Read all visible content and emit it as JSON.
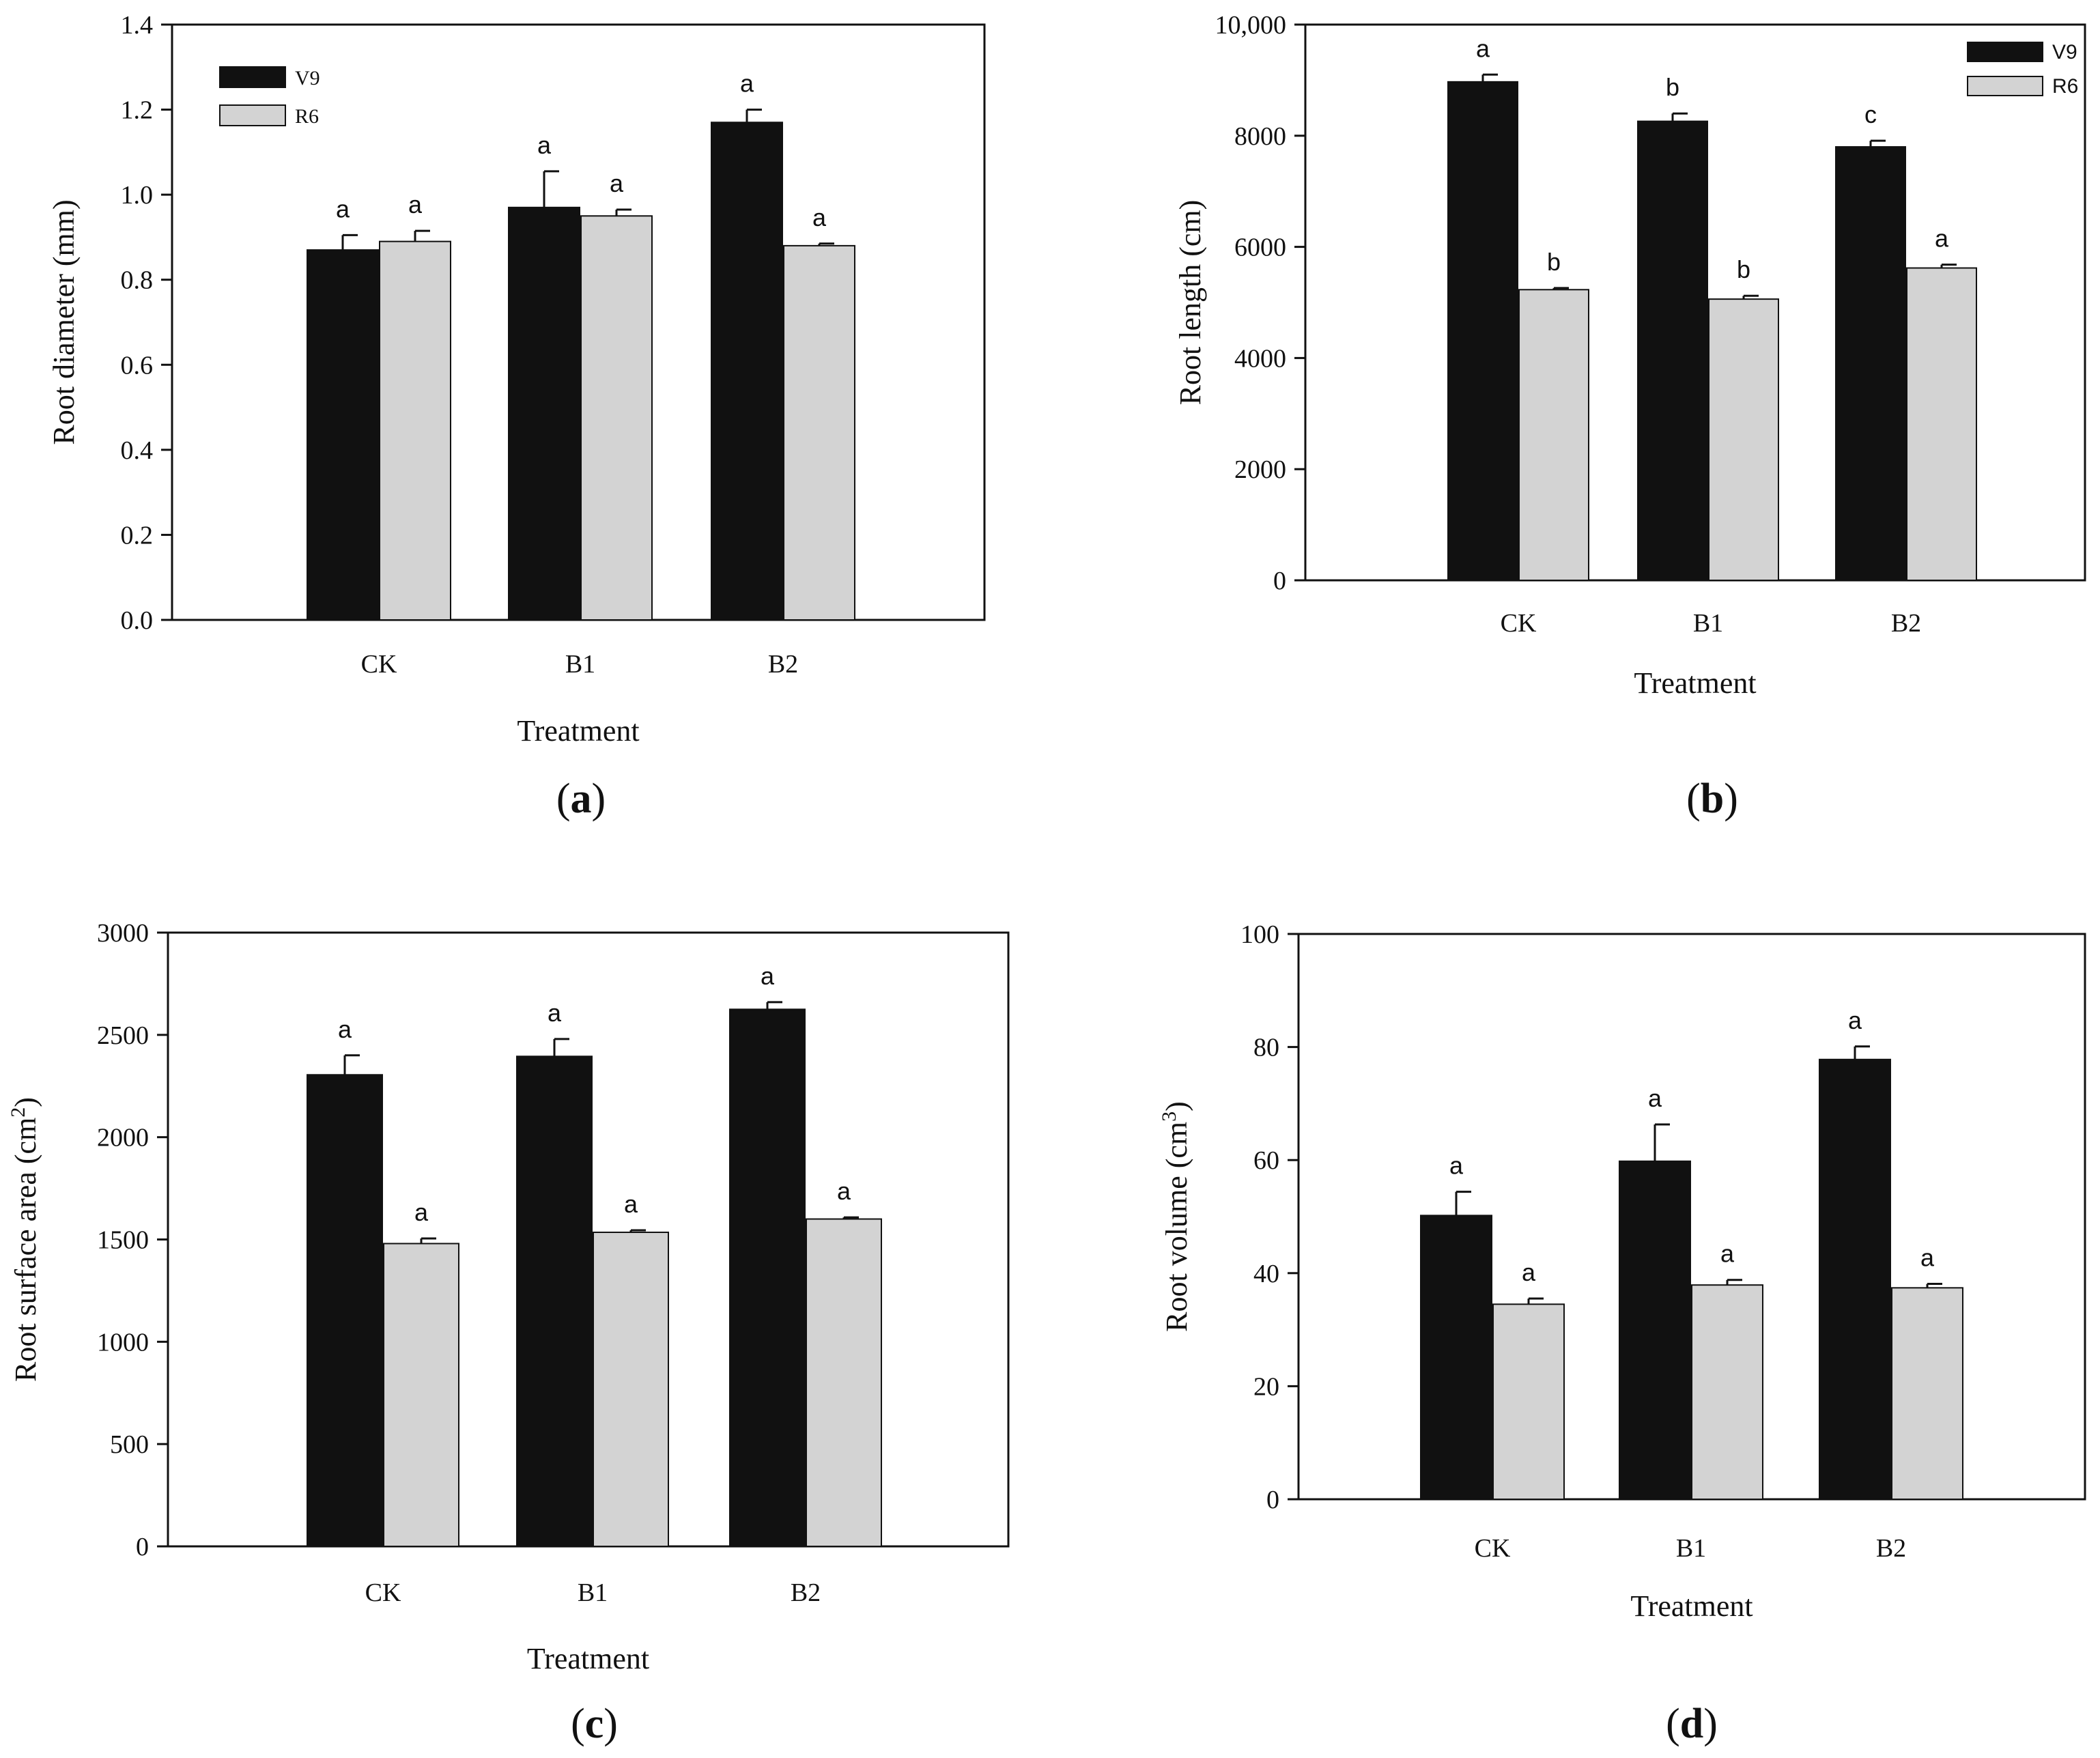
{
  "chart_data": [
    {
      "panel": "(a)",
      "panel_letter": "a",
      "type": "bar",
      "title": "",
      "xlabel": "Treatment",
      "ylabel": "Root diameter (mm)",
      "categories": [
        "CK",
        "B1",
        "B2"
      ],
      "ylim": [
        0,
        1.4
      ],
      "yticks": [
        0.0,
        0.2,
        0.4,
        0.6,
        0.8,
        1.0,
        1.2,
        1.4
      ],
      "ytick_labels": [
        "0.0",
        "0.2",
        "0.4",
        "0.6",
        "0.8",
        "1.0",
        "1.2",
        "1.4"
      ],
      "legend": {
        "show": true,
        "position": "top-left"
      },
      "series": [
        {
          "name": "V9",
          "color": "#111111",
          "values": [
            0.87,
            0.97,
            1.17
          ],
          "errors": [
            0.035,
            0.085,
            0.03
          ],
          "letters": [
            "a",
            "a",
            "a"
          ]
        },
        {
          "name": "R6",
          "color": "#d3d3d3",
          "values": [
            0.89,
            0.95,
            0.88
          ],
          "errors": [
            0.025,
            0.015,
            0.005
          ],
          "letters": [
            "a",
            "a",
            "a"
          ]
        }
      ]
    },
    {
      "panel": "(b)",
      "panel_letter": "b",
      "type": "bar",
      "title": "",
      "xlabel": "Treatment",
      "ylabel": "Root length (cm)",
      "categories": [
        "CK",
        "B1",
        "B2"
      ],
      "ylim": [
        0,
        10000
      ],
      "yticks": [
        0,
        2000,
        4000,
        6000,
        8000,
        10000
      ],
      "ytick_labels": [
        "0",
        "2000",
        "4000",
        "6000",
        "8000",
        "10,000"
      ],
      "legend": {
        "show": true,
        "position": "top-right"
      },
      "series": [
        {
          "name": "V9",
          "color": "#111111",
          "values": [
            8970,
            8260,
            7800
          ],
          "errors": [
            130,
            140,
            110
          ],
          "letters": [
            "a",
            "b",
            "c"
          ]
        },
        {
          "name": "R6",
          "color": "#d3d3d3",
          "values": [
            5230,
            5060,
            5620
          ],
          "errors": [
            30,
            60,
            60
          ],
          "letters": [
            "b",
            "b",
            "a"
          ]
        }
      ]
    },
    {
      "panel": "(c)",
      "panel_letter": "c",
      "type": "bar",
      "title": "",
      "xlabel": "Treatment",
      "ylabel": "Root surface area (cm2)",
      "ylabel_main": "Root surface area (cm",
      "ylabel_sup": "2",
      "ylabel_end": ")",
      "categories": [
        "CK",
        "B1",
        "B2"
      ],
      "ylim": [
        0,
        3000
      ],
      "yticks": [
        0,
        500,
        1000,
        1500,
        2000,
        2500,
        3000
      ],
      "ytick_labels": [
        "0",
        "500",
        "1000",
        "1500",
        "2000",
        "2500",
        "3000"
      ],
      "legend": {
        "show": false
      },
      "series": [
        {
          "name": "V9",
          "color": "#111111",
          "values": [
            2305,
            2395,
            2625
          ],
          "errors": [
            95,
            85,
            35
          ],
          "letters": [
            "a",
            "a",
            "a"
          ]
        },
        {
          "name": "R6",
          "color": "#d3d3d3",
          "values": [
            1480,
            1535,
            1600
          ],
          "errors": [
            25,
            10,
            8
          ],
          "letters": [
            "a",
            "a",
            "a"
          ]
        }
      ]
    },
    {
      "panel": "(d)",
      "panel_letter": "d",
      "type": "bar",
      "title": "",
      "xlabel": "Treatment",
      "ylabel": "Root volume (cm3)",
      "ylabel_main": "Root volume (cm",
      "ylabel_sup": "3",
      "ylabel_end": ")",
      "categories": [
        "CK",
        "B1",
        "B2"
      ],
      "ylim": [
        0,
        100
      ],
      "yticks": [
        0,
        20,
        40,
        60,
        80,
        100
      ],
      "ytick_labels": [
        "0",
        "20",
        "40",
        "60",
        "80",
        "100"
      ],
      "legend": {
        "show": false
      },
      "series": [
        {
          "name": "V9",
          "color": "#111111",
          "values": [
            50.2,
            59.8,
            77.8
          ],
          "errors": [
            4.2,
            6.5,
            2.3
          ],
          "letters": [
            "a",
            "a",
            "a"
          ]
        },
        {
          "name": "R6",
          "color": "#d3d3d3",
          "values": [
            34.5,
            37.9,
            37.4
          ],
          "errors": [
            1.0,
            0.9,
            0.7
          ],
          "letters": [
            "a",
            "a",
            "a"
          ]
        }
      ]
    }
  ]
}
